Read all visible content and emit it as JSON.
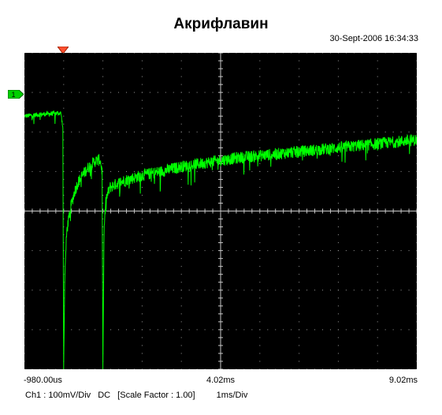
{
  "title": "Акрифлавин",
  "timestamp": "30-Sept-2006 16:34:33",
  "channel_marker": "1",
  "chart_data": {
    "type": "line",
    "title": "Акрифлавин",
    "x_unit": "ms",
    "xlim": [
      -0.98,
      9.02
    ],
    "x_tick_labels": [
      "-980.00us",
      "4.02ms",
      "9.02ms"
    ],
    "y_unit": "mV",
    "ylim": [
      -400,
      400
    ],
    "grid": true,
    "trace_color": "#00ff00",
    "series": [
      {
        "x": [
          -0.98,
          -0.5,
          -0.05,
          0.0,
          0.02,
          0.05,
          0.1,
          0.2,
          0.3,
          0.4,
          0.6,
          0.8,
          0.95,
          1.0,
          1.02,
          1.05,
          1.1,
          1.2,
          1.5,
          2.0,
          2.5,
          3.0,
          3.5,
          4.0,
          4.5,
          5.0,
          5.5,
          6.0,
          6.5,
          7.0,
          7.5,
          8.0,
          8.5,
          9.02
        ],
        "y": [
          240,
          245,
          248,
          210,
          -400,
          -160,
          -50,
          10,
          50,
          75,
          105,
          125,
          130,
          100,
          -400,
          -40,
          30,
          60,
          75,
          90,
          100,
          112,
          120,
          128,
          135,
          140,
          145,
          150,
          155,
          160,
          165,
          170,
          175,
          180
        ]
      }
    ]
  },
  "footer": {
    "channel": "Ch1 : 100mV/Div",
    "coupling": "DC",
    "scale": "[Scale Factor : 1.00]",
    "timebase": "1ms/Div"
  }
}
